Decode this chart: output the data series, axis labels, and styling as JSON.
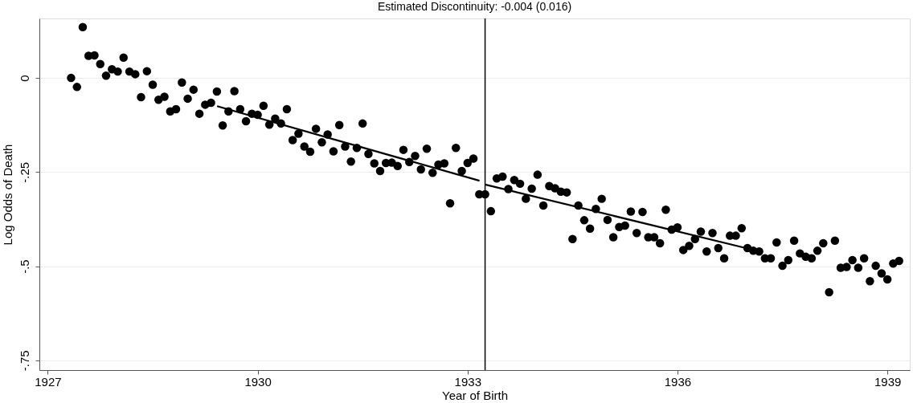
{
  "chart_data": {
    "type": "scatter",
    "title": "Estimated Discontinuity: -0.004 (0.016)",
    "xlabel": "Year of Birth",
    "ylabel": "Log Odds of Death",
    "xlim": [
      1926.88,
      1939.32
    ],
    "xticks": [
      1927,
      1930,
      1933,
      1936,
      1939
    ],
    "ylim": [
      -0.776,
      0.158
    ],
    "yticks": [
      {
        "value": 0,
        "label": "0"
      },
      {
        "value": -0.25,
        "label": "-.25"
      },
      {
        "value": -0.5,
        "label": "-.5"
      },
      {
        "value": -0.75,
        "label": "-.75"
      }
    ],
    "grid": "y",
    "ref_lines": [
      {
        "axis": "x",
        "value": 1933.25,
        "color": "#000000"
      }
    ],
    "series": [
      {
        "color": "#000000",
        "marker": "circle",
        "x": [
          1927.333,
          1927.417,
          1927.5,
          1927.583,
          1927.667,
          1927.75,
          1927.833,
          1927.917,
          1928,
          1928.083,
          1928.167,
          1928.25,
          1928.333,
          1928.417,
          1928.5,
          1928.583,
          1928.667,
          1928.75,
          1928.833,
          1928.917,
          1929,
          1929.083,
          1929.167,
          1929.25,
          1929.333,
          1929.417,
          1929.5,
          1929.583,
          1929.667,
          1929.75,
          1929.833,
          1929.917,
          1930,
          1930.083,
          1930.167,
          1930.25,
          1930.333,
          1930.417,
          1930.5,
          1930.583,
          1930.667,
          1930.75,
          1930.833,
          1930.917,
          1931,
          1931.083,
          1931.167,
          1931.25,
          1931.333,
          1931.417,
          1931.5,
          1931.583,
          1931.667,
          1931.75,
          1931.833,
          1931.917,
          1932,
          1932.083,
          1932.167,
          1932.25,
          1932.333,
          1932.417,
          1932.5,
          1932.583,
          1932.667,
          1932.75,
          1932.833,
          1932.917,
          1933,
          1933.083,
          1933.167,
          1933.25,
          1933.333,
          1933.417,
          1933.5,
          1933.583,
          1933.667,
          1933.75,
          1933.833,
          1933.917,
          1934,
          1934.083,
          1934.167,
          1934.25,
          1934.333,
          1934.417,
          1934.5,
          1934.583,
          1934.667,
          1934.75,
          1934.833,
          1934.917,
          1935,
          1935.083,
          1935.167,
          1935.25,
          1935.333,
          1935.417,
          1935.5,
          1935.583,
          1935.667,
          1935.75,
          1935.833,
          1935.917,
          1936,
          1936.083,
          1936.167,
          1936.25,
          1936.333,
          1936.417,
          1936.5,
          1936.583,
          1936.667,
          1936.75,
          1936.833,
          1936.917,
          1937,
          1937.083,
          1937.167,
          1937.25,
          1937.333,
          1937.417,
          1937.5,
          1937.583,
          1937.667,
          1937.75,
          1937.833,
          1937.917,
          1938,
          1938.083,
          1938.167,
          1938.25,
          1938.333,
          1938.417,
          1938.5,
          1938.583,
          1938.667,
          1938.75,
          1938.833,
          1938.917,
          1939,
          1939.083,
          1939.167
        ],
        "values": [
          0.0,
          -0.024,
          0.135,
          0.059,
          0.06,
          0.037,
          0.006,
          0.023,
          0.017,
          0.054,
          0.017,
          0.01,
          -0.051,
          0.018,
          -0.018,
          -0.058,
          -0.05,
          -0.089,
          -0.083,
          -0.012,
          -0.055,
          -0.031,
          -0.095,
          -0.071,
          -0.066,
          -0.036,
          -0.126,
          -0.089,
          -0.035,
          -0.083,
          -0.115,
          -0.095,
          -0.098,
          -0.074,
          -0.124,
          -0.108,
          -0.121,
          -0.083,
          -0.165,
          -0.148,
          -0.182,
          -0.196,
          -0.135,
          -0.171,
          -0.15,
          -0.195,
          -0.125,
          -0.182,
          -0.222,
          -0.186,
          -0.121,
          -0.202,
          -0.227,
          -0.247,
          -0.226,
          -0.225,
          -0.234,
          -0.191,
          -0.223,
          -0.207,
          -0.243,
          -0.188,
          -0.252,
          -0.23,
          -0.227,
          -0.333,
          -0.186,
          -0.247,
          -0.226,
          -0.214,
          -0.309,
          -0.309,
          -0.354,
          -0.267,
          -0.262,
          -0.295,
          -0.271,
          -0.281,
          -0.321,
          -0.294,
          -0.257,
          -0.339,
          -0.287,
          -0.293,
          -0.302,
          -0.304,
          -0.428,
          -0.339,
          -0.378,
          -0.4,
          -0.348,
          -0.321,
          -0.377,
          -0.423,
          -0.396,
          -0.392,
          -0.355,
          -0.412,
          -0.356,
          -0.423,
          -0.423,
          -0.439,
          -0.35,
          -0.403,
          -0.397,
          -0.457,
          -0.446,
          -0.428,
          -0.408,
          -0.461,
          -0.412,
          -0.452,
          -0.479,
          -0.419,
          -0.419,
          -0.399,
          -0.452,
          -0.459,
          -0.461,
          -0.479,
          -0.479,
          -0.437,
          -0.499,
          -0.484,
          -0.432,
          -0.466,
          -0.475,
          -0.479,
          -0.459,
          -0.439,
          -0.569,
          -0.432,
          -0.504,
          -0.502,
          -0.484,
          -0.504,
          -0.479,
          -0.54,
          -0.499,
          -0.519,
          -0.535,
          -0.493,
          -0.486
        ]
      },
      {
        "type": "line",
        "marker": "none",
        "color": "#000000",
        "x": [
          1929.42,
          1933.17
        ],
        "values": [
          -0.075,
          -0.273
        ]
      },
      {
        "type": "line",
        "marker": "none",
        "color": "#000000",
        "x": [
          1933.25,
          1937.0
        ],
        "values": [
          -0.283,
          -0.453
        ]
      }
    ]
  }
}
